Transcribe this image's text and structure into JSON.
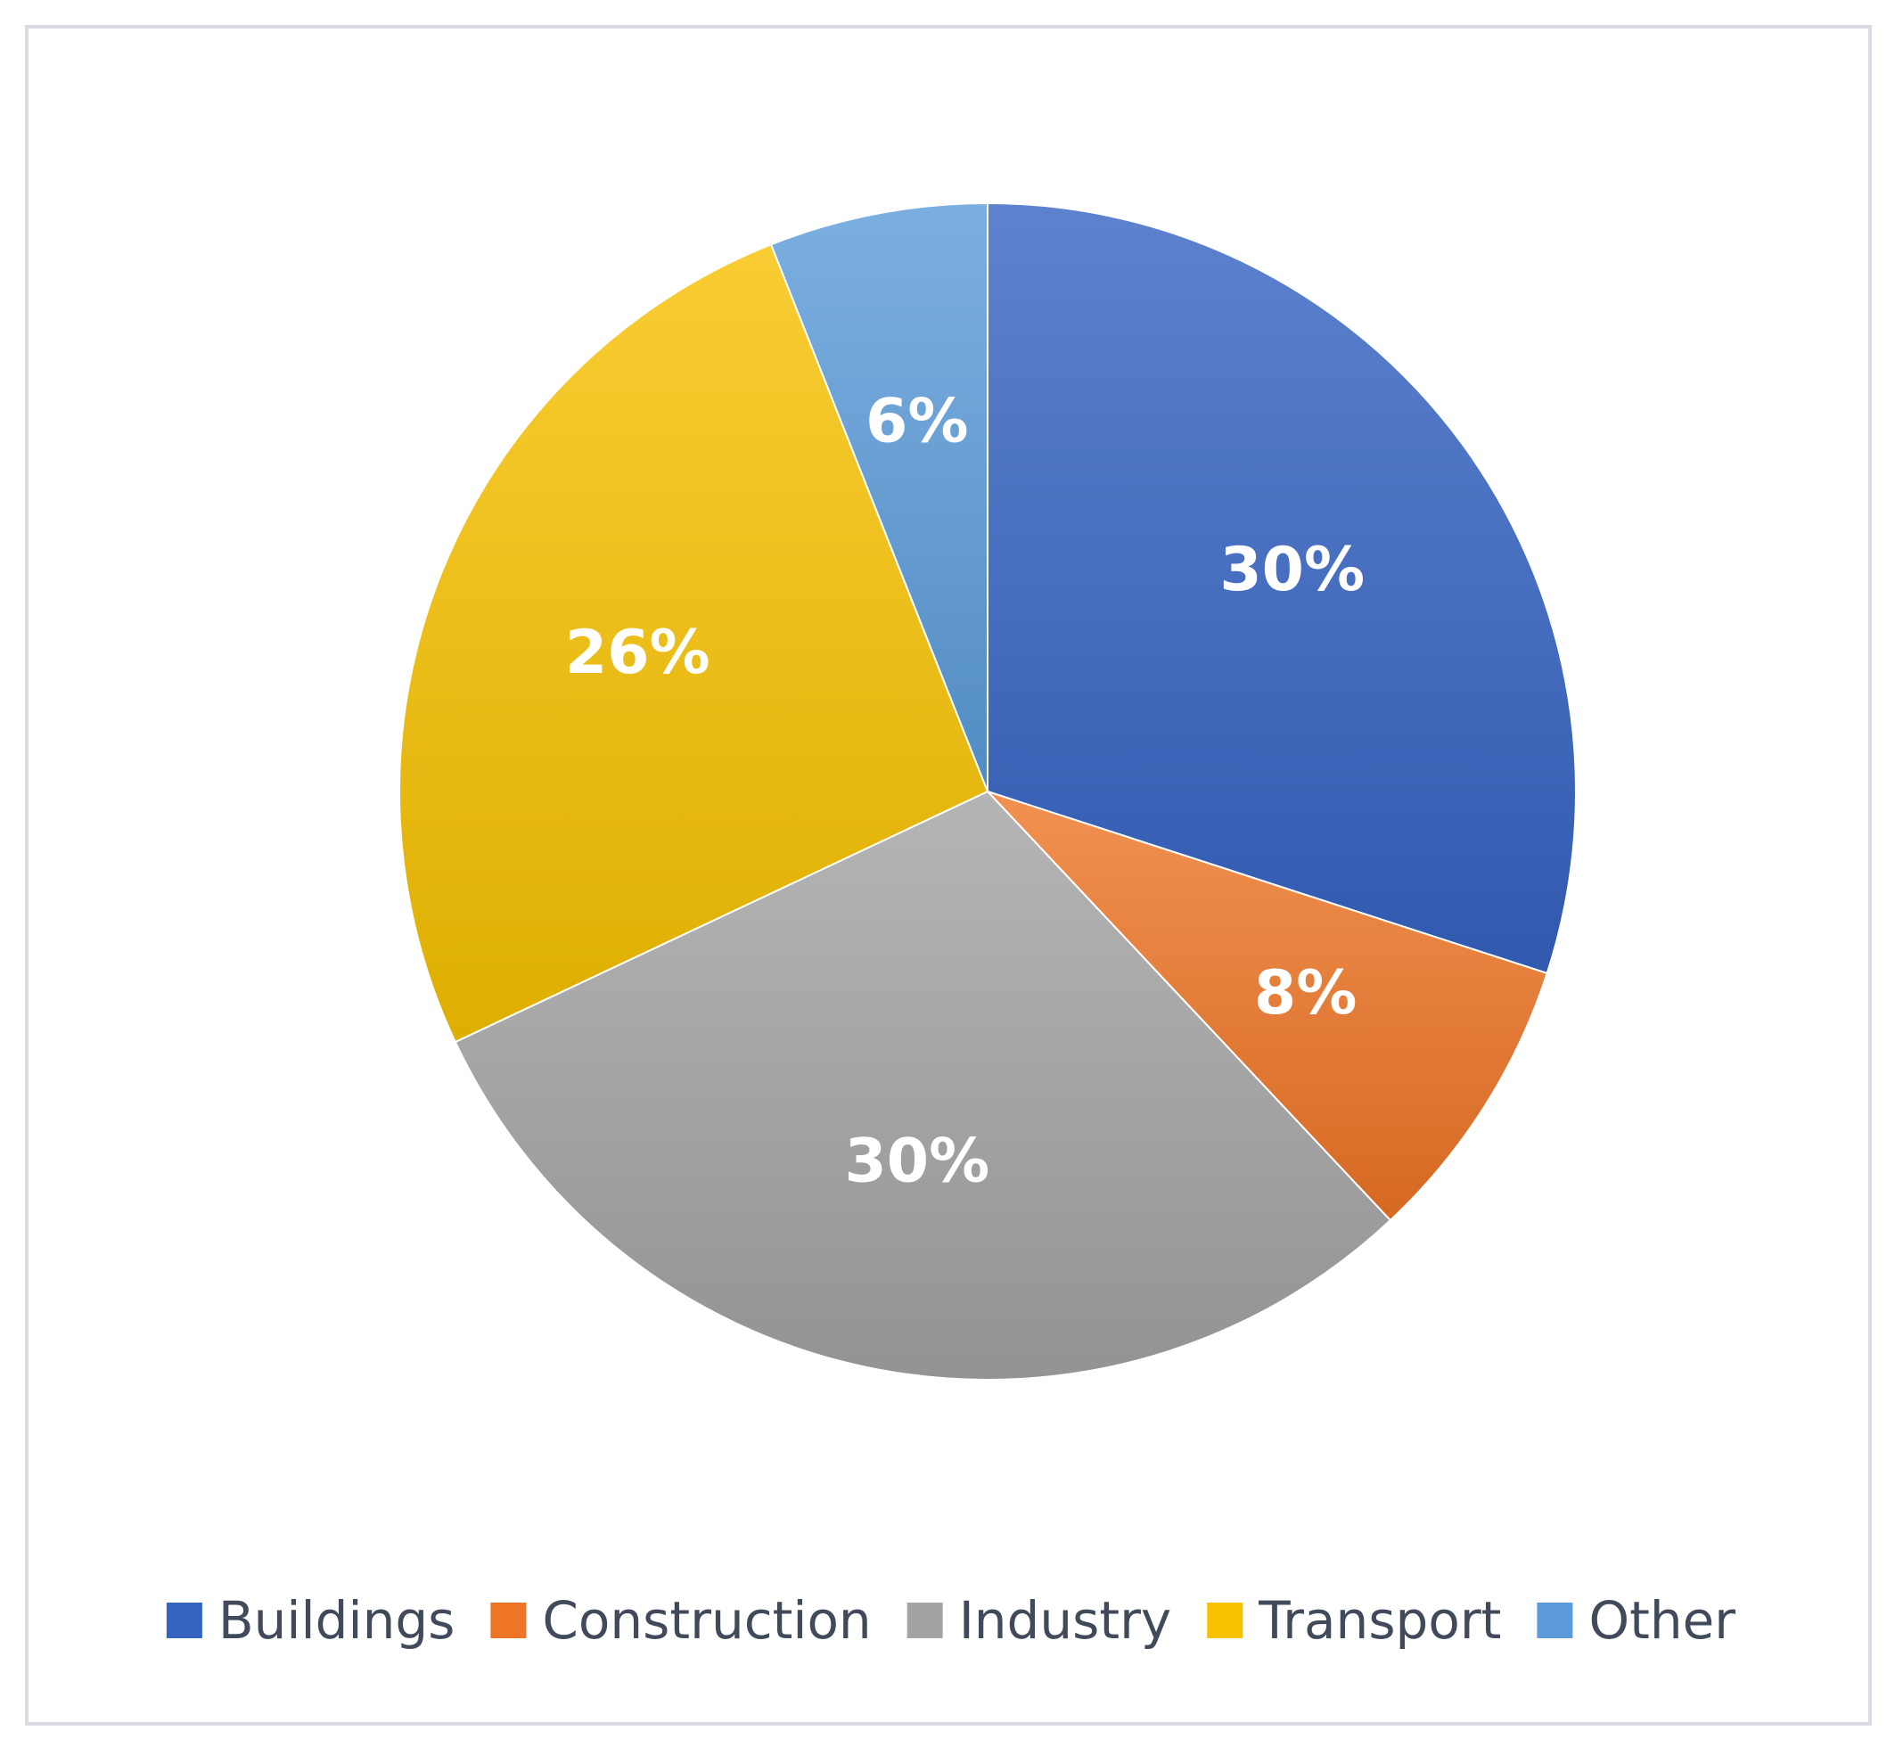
{
  "chart_data": {
    "type": "pie",
    "title": "",
    "slices": [
      {
        "name": "Buildings",
        "value": 30,
        "label": "30%",
        "color": "#3563c2"
      },
      {
        "name": "Construction",
        "value": 8,
        "label": "8%",
        "color": "#ee7526"
      },
      {
        "name": "Industry",
        "value": 30,
        "label": "30%",
        "color": "#a3a3a3"
      },
      {
        "name": "Transport",
        "value": 26,
        "label": "26%",
        "color": "#f7c100"
      },
      {
        "name": "Other",
        "value": 6,
        "label": "6%",
        "color": "#5b9bd9"
      }
    ],
    "legend": {
      "position": "bottom"
    },
    "start_angle": "12 o'clock",
    "direction": "clockwise"
  }
}
